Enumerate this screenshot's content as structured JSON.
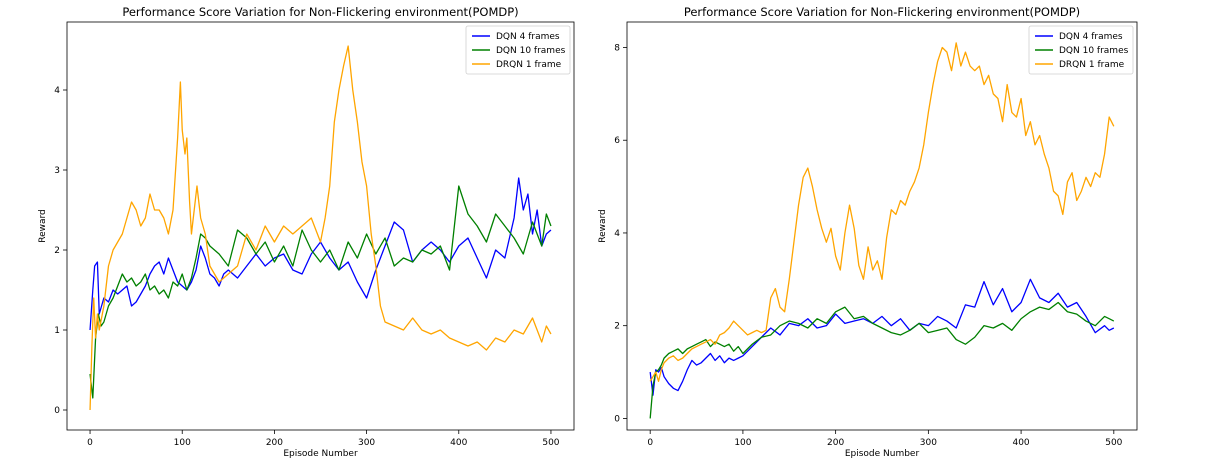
{
  "chart_data": [
    {
      "type": "line",
      "title": "Performance Score Variation for Non-Flickering environment(POMDP)",
      "xlabel": "Episode Number",
      "ylabel": "Reward",
      "xlim": [
        -25,
        525
      ],
      "ylim": [
        -0.25,
        4.85
      ],
      "xticks": [
        0,
        100,
        200,
        300,
        400,
        500
      ],
      "yticks": [
        0,
        1,
        2,
        3,
        4
      ],
      "grid": false,
      "legend_position": "top-right",
      "series": [
        {
          "name": "DQN 4 frames",
          "color": "#0000ff",
          "x": [
            0,
            3,
            5,
            8,
            10,
            15,
            20,
            25,
            30,
            35,
            40,
            45,
            50,
            55,
            60,
            65,
            70,
            75,
            80,
            85,
            90,
            95,
            100,
            105,
            110,
            115,
            120,
            125,
            130,
            135,
            140,
            145,
            150,
            160,
            170,
            180,
            190,
            200,
            210,
            220,
            230,
            240,
            250,
            260,
            270,
            280,
            290,
            300,
            310,
            320,
            330,
            340,
            350,
            360,
            370,
            380,
            390,
            400,
            410,
            420,
            430,
            440,
            450,
            460,
            465,
            470,
            475,
            480,
            485,
            490,
            495,
            500
          ],
          "y": [
            1.0,
            1.5,
            1.8,
            1.85,
            1.2,
            1.4,
            1.35,
            1.5,
            1.45,
            1.5,
            1.55,
            1.3,
            1.35,
            1.45,
            1.55,
            1.7,
            1.8,
            1.85,
            1.7,
            1.9,
            1.75,
            1.6,
            1.55,
            1.5,
            1.6,
            1.75,
            2.05,
            1.9,
            1.7,
            1.65,
            1.55,
            1.7,
            1.75,
            1.65,
            1.8,
            1.95,
            1.8,
            1.9,
            1.95,
            1.75,
            1.7,
            1.95,
            2.1,
            1.9,
            1.75,
            1.85,
            1.6,
            1.4,
            1.75,
            2.05,
            2.35,
            2.25,
            1.85,
            2.0,
            2.1,
            2.0,
            1.85,
            2.05,
            2.15,
            1.9,
            1.65,
            2.0,
            1.9,
            2.4,
            2.9,
            2.5,
            2.7,
            2.2,
            2.5,
            2.05,
            2.2,
            2.25
          ]
        },
        {
          "name": "DQN 10 frames",
          "color": "#008000",
          "x": [
            0,
            3,
            6,
            9,
            12,
            15,
            20,
            25,
            30,
            35,
            40,
            45,
            50,
            55,
            60,
            65,
            70,
            75,
            80,
            85,
            90,
            95,
            100,
            105,
            110,
            115,
            120,
            125,
            130,
            140,
            150,
            160,
            170,
            180,
            190,
            200,
            210,
            220,
            230,
            240,
            250,
            260,
            270,
            280,
            290,
            300,
            310,
            320,
            330,
            340,
            350,
            360,
            370,
            380,
            390,
            400,
            410,
            420,
            430,
            440,
            450,
            460,
            470,
            480,
            490,
            495,
            500
          ],
          "y": [
            0.45,
            0.15,
            0.9,
            1.2,
            1.05,
            1.1,
            1.3,
            1.4,
            1.55,
            1.7,
            1.6,
            1.65,
            1.55,
            1.6,
            1.7,
            1.5,
            1.55,
            1.45,
            1.5,
            1.4,
            1.6,
            1.55,
            1.7,
            1.5,
            1.65,
            1.9,
            2.2,
            2.15,
            2.05,
            1.95,
            1.8,
            2.25,
            2.15,
            1.95,
            2.1,
            1.85,
            2.05,
            1.8,
            2.25,
            2.0,
            1.85,
            2.0,
            1.75,
            2.1,
            1.9,
            2.2,
            1.95,
            2.15,
            1.8,
            1.9,
            1.85,
            2.0,
            1.95,
            2.05,
            1.75,
            2.8,
            2.45,
            2.3,
            2.1,
            2.45,
            2.3,
            2.15,
            1.95,
            2.35,
            2.05,
            2.45,
            2.3
          ]
        },
        {
          "name": "DRQN 1 frame",
          "color": "#ffa500",
          "x": [
            0,
            2,
            4,
            6,
            8,
            10,
            15,
            20,
            25,
            30,
            35,
            40,
            45,
            50,
            55,
            60,
            65,
            70,
            75,
            80,
            85,
            90,
            95,
            98,
            100,
            103,
            105,
            108,
            110,
            113,
            116,
            120,
            125,
            130,
            140,
            150,
            160,
            170,
            180,
            190,
            200,
            210,
            220,
            230,
            240,
            250,
            255,
            260,
            265,
            270,
            275,
            280,
            285,
            290,
            295,
            300,
            305,
            310,
            315,
            320,
            330,
            340,
            350,
            360,
            370,
            380,
            390,
            400,
            410,
            420,
            430,
            440,
            450,
            460,
            470,
            480,
            490,
            495,
            500
          ],
          "y": [
            0.0,
            0.8,
            1.4,
            0.9,
            1.2,
            1.0,
            1.3,
            1.8,
            2.0,
            2.1,
            2.2,
            2.4,
            2.6,
            2.5,
            2.3,
            2.4,
            2.7,
            2.5,
            2.5,
            2.4,
            2.2,
            2.5,
            3.4,
            4.1,
            3.5,
            3.2,
            3.4,
            2.6,
            2.2,
            2.5,
            2.8,
            2.4,
            2.2,
            1.8,
            1.6,
            1.7,
            1.8,
            2.2,
            2.0,
            2.3,
            2.1,
            2.3,
            2.2,
            2.3,
            2.4,
            2.1,
            2.4,
            2.8,
            3.6,
            4.0,
            4.3,
            4.55,
            4.0,
            3.6,
            3.1,
            2.8,
            2.2,
            1.8,
            1.3,
            1.1,
            1.05,
            1.0,
            1.15,
            1.0,
            0.95,
            1.0,
            0.9,
            0.85,
            0.8,
            0.85,
            0.75,
            0.9,
            0.85,
            1.0,
            0.95,
            1.15,
            0.85,
            1.05,
            0.95
          ]
        }
      ]
    },
    {
      "type": "line",
      "title": "Performance Score Variation for Non-Flickering environment(POMDP)",
      "xlabel": "Episode Number",
      "ylabel": "Reward",
      "xlim": [
        -25,
        525
      ],
      "ylim": [
        -0.25,
        8.55
      ],
      "xticks": [
        0,
        100,
        200,
        300,
        400,
        500
      ],
      "yticks": [
        0,
        2,
        4,
        6,
        8
      ],
      "grid": false,
      "legend_position": "top-right",
      "series": [
        {
          "name": "DQN 4 frames",
          "color": "#0000ff",
          "x": [
            0,
            3,
            6,
            9,
            12,
            15,
            20,
            25,
            30,
            35,
            40,
            45,
            50,
            55,
            60,
            65,
            70,
            75,
            80,
            85,
            90,
            95,
            100,
            110,
            120,
            130,
            140,
            150,
            160,
            170,
            180,
            190,
            200,
            210,
            220,
            230,
            240,
            250,
            260,
            270,
            280,
            290,
            300,
            310,
            320,
            330,
            340,
            350,
            360,
            370,
            380,
            390,
            400,
            410,
            420,
            430,
            440,
            450,
            460,
            470,
            480,
            490,
            495,
            500
          ],
          "y": [
            1.0,
            0.5,
            1.05,
            1.0,
            1.1,
            0.9,
            0.75,
            0.65,
            0.6,
            0.8,
            1.05,
            1.25,
            1.15,
            1.2,
            1.3,
            1.4,
            1.25,
            1.35,
            1.2,
            1.3,
            1.25,
            1.3,
            1.35,
            1.55,
            1.75,
            1.95,
            1.8,
            2.05,
            2.0,
            2.15,
            1.95,
            2.0,
            2.25,
            2.05,
            2.1,
            2.15,
            2.05,
            2.2,
            2.0,
            2.15,
            1.9,
            2.05,
            2.0,
            2.2,
            2.1,
            1.95,
            2.45,
            2.4,
            2.95,
            2.45,
            2.8,
            2.3,
            2.5,
            3.0,
            2.6,
            2.5,
            2.7,
            2.4,
            2.5,
            2.2,
            1.85,
            2.0,
            1.9,
            1.95
          ]
        },
        {
          "name": "DQN 10 frames",
          "color": "#008000",
          "x": [
            0,
            3,
            6,
            9,
            12,
            15,
            20,
            25,
            30,
            35,
            40,
            45,
            50,
            55,
            60,
            65,
            70,
            75,
            80,
            85,
            90,
            95,
            100,
            110,
            120,
            130,
            140,
            150,
            160,
            170,
            180,
            190,
            200,
            210,
            220,
            230,
            240,
            250,
            260,
            270,
            280,
            290,
            300,
            310,
            320,
            330,
            340,
            350,
            360,
            370,
            380,
            390,
            400,
            410,
            420,
            430,
            440,
            450,
            460,
            470,
            480,
            490,
            495,
            500
          ],
          "y": [
            0.0,
            0.7,
            1.0,
            1.05,
            1.15,
            1.3,
            1.4,
            1.45,
            1.5,
            1.4,
            1.5,
            1.55,
            1.6,
            1.65,
            1.7,
            1.55,
            1.65,
            1.6,
            1.55,
            1.6,
            1.45,
            1.55,
            1.4,
            1.6,
            1.75,
            1.8,
            2.0,
            2.1,
            2.05,
            1.95,
            2.15,
            2.05,
            2.3,
            2.4,
            2.15,
            2.2,
            2.05,
            1.95,
            1.85,
            1.8,
            1.9,
            2.05,
            1.85,
            1.9,
            1.95,
            1.7,
            1.6,
            1.75,
            2.0,
            1.95,
            2.05,
            1.9,
            2.15,
            2.3,
            2.4,
            2.35,
            2.5,
            2.3,
            2.25,
            2.1,
            2.0,
            2.2,
            2.15,
            2.1
          ]
        },
        {
          "name": "DRQN 1 frame",
          "color": "#ffa500",
          "x": [
            0,
            3,
            6,
            9,
            12,
            15,
            20,
            25,
            30,
            35,
            40,
            45,
            50,
            55,
            60,
            65,
            70,
            75,
            80,
            85,
            90,
            95,
            100,
            105,
            110,
            115,
            120,
            125,
            130,
            135,
            140,
            145,
            150,
            155,
            160,
            165,
            170,
            175,
            180,
            185,
            190,
            195,
            200,
            205,
            210,
            215,
            220,
            225,
            230,
            235,
            240,
            245,
            250,
            255,
            260,
            265,
            270,
            275,
            280,
            285,
            290,
            295,
            300,
            305,
            310,
            315,
            320,
            325,
            330,
            335,
            340,
            345,
            350,
            355,
            360,
            365,
            370,
            375,
            380,
            385,
            390,
            395,
            400,
            405,
            410,
            415,
            420,
            425,
            430,
            435,
            440,
            445,
            450,
            455,
            460,
            465,
            470,
            475,
            480,
            485,
            490,
            495,
            500
          ],
          "y": [
            0.8,
            0.9,
            1.0,
            0.8,
            1.05,
            1.2,
            1.3,
            1.35,
            1.25,
            1.3,
            1.4,
            1.5,
            1.55,
            1.6,
            1.65,
            1.7,
            1.6,
            1.8,
            1.85,
            1.95,
            2.1,
            2.0,
            1.9,
            1.8,
            1.85,
            1.9,
            1.85,
            1.9,
            2.6,
            2.8,
            2.4,
            2.3,
            3.0,
            3.8,
            4.6,
            5.2,
            5.4,
            5.0,
            4.5,
            4.1,
            3.8,
            4.1,
            3.5,
            3.2,
            4.0,
            4.6,
            4.1,
            3.3,
            3.0,
            3.7,
            3.2,
            3.4,
            3.0,
            3.9,
            4.5,
            4.4,
            4.7,
            4.6,
            4.9,
            5.1,
            5.4,
            5.9,
            6.6,
            7.2,
            7.7,
            8.0,
            7.9,
            7.5,
            8.1,
            7.6,
            7.9,
            7.6,
            7.5,
            7.6,
            7.2,
            7.4,
            7.0,
            6.9,
            6.4,
            7.2,
            6.6,
            6.5,
            6.9,
            6.1,
            6.4,
            5.9,
            6.1,
            5.7,
            5.4,
            4.9,
            4.8,
            4.4,
            5.1,
            5.3,
            4.7,
            4.9,
            5.2,
            5.0,
            5.3,
            5.2,
            5.7,
            6.5,
            6.3
          ]
        }
      ]
    }
  ]
}
